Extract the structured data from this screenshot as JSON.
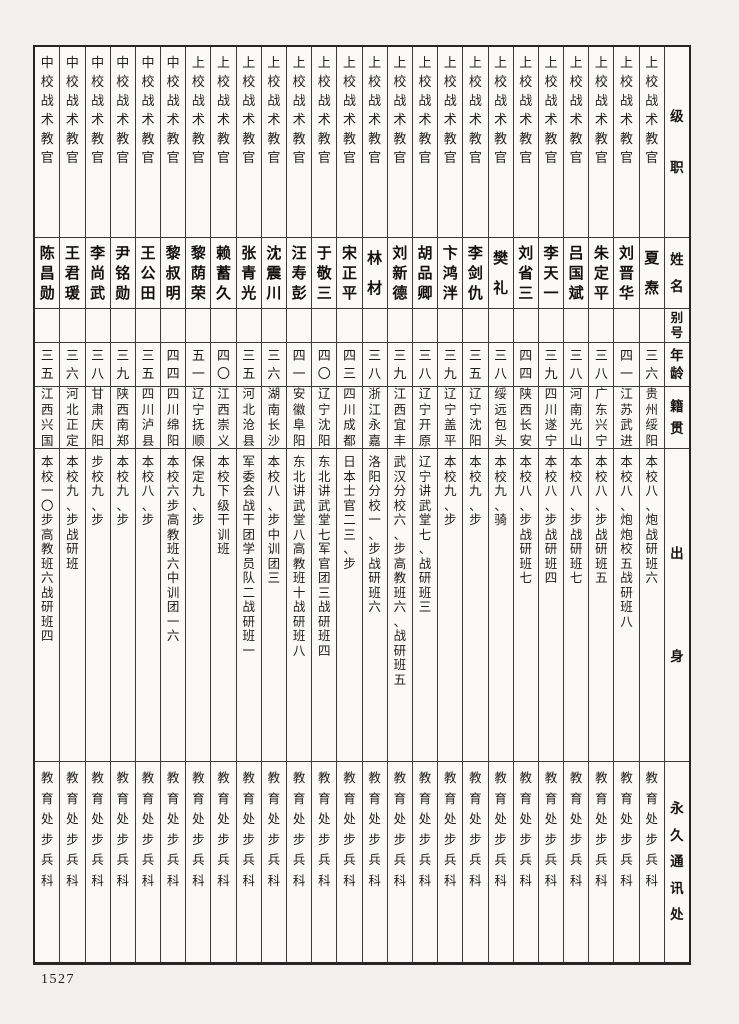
{
  "page": {
    "number": "1527"
  },
  "table": {
    "headers": {
      "rank": "级职",
      "name": "姓名",
      "alias": "别号",
      "age": "年龄",
      "native_place": "籍贯",
      "background": "出身",
      "address": "永久通讯处"
    },
    "reading_order": "right-to-left",
    "people": [
      {
        "rank": "上校战术教官",
        "name": "夏焘",
        "alias": "",
        "age": "三六",
        "native_place": "贵州绥阳",
        "background": "本校八、炮战研班六",
        "address": "教育处步兵科"
      },
      {
        "rank": "上校战术教官",
        "name": "刘晋华",
        "alias": "",
        "age": "四一",
        "native_place": "江苏武进",
        "background": "本校八、炮炮校五战研班八",
        "address": "教育处步兵科"
      },
      {
        "rank": "上校战术教官",
        "name": "朱定平",
        "alias": "",
        "age": "三八",
        "native_place": "广东兴宁",
        "background": "本校八、步战研班五",
        "address": "教育处步兵科"
      },
      {
        "rank": "上校战术教官",
        "name": "吕国斌",
        "alias": "",
        "age": "三八",
        "native_place": "河南光山",
        "background": "本校八、步战研班七",
        "address": "教育处步兵科"
      },
      {
        "rank": "上校战术教官",
        "name": "李天一",
        "alias": "",
        "age": "三九",
        "native_place": "四川遂宁",
        "background": "本校八、步战研班四",
        "address": "教育处步兵科"
      },
      {
        "rank": "上校战术教官",
        "name": "刘省三",
        "alias": "",
        "age": "四四",
        "native_place": "陕西长安",
        "background": "本校八、步战研班七",
        "address": "教育处步兵科"
      },
      {
        "rank": "上校战术教官",
        "name": "樊礼",
        "alias": "",
        "age": "三八",
        "native_place": "绥远包头",
        "background": "本校九、骑",
        "address": "教育处步兵科"
      },
      {
        "rank": "上校战术教官",
        "name": "李剑仇",
        "alias": "",
        "age": "三五",
        "native_place": "辽宁沈阳",
        "background": "本校九、步",
        "address": "教育处步兵科"
      },
      {
        "rank": "上校战术教官",
        "name": "卞鸿泮",
        "alias": "",
        "age": "三九",
        "native_place": "辽宁盖平",
        "background": "本校九、步",
        "address": "教育处步兵科"
      },
      {
        "rank": "上校战术教官",
        "name": "胡品卿",
        "alias": "",
        "age": "三八",
        "native_place": "辽宁开原",
        "background": "辽宁讲武堂七、战研班三",
        "address": "教育处步兵科"
      },
      {
        "rank": "上校战术教官",
        "name": "刘新德",
        "alias": "",
        "age": "三九",
        "native_place": "江西宜丰",
        "background": "武汉分校六、步高教班六、战研班五",
        "address": "教育处步兵科"
      },
      {
        "rank": "上校战术教官",
        "name": "林材",
        "alias": "",
        "age": "三八",
        "native_place": "浙江永嘉",
        "background": "洛阳分校一、步战研班六",
        "address": "教育处步兵科"
      },
      {
        "rank": "上校战术教官",
        "name": "宋正平",
        "alias": "",
        "age": "四三",
        "native_place": "四川成都",
        "background": "日本士官二三、步",
        "address": "教育处步兵科"
      },
      {
        "rank": "上校战术教官",
        "name": "于敬三",
        "alias": "",
        "age": "四〇",
        "native_place": "辽宁沈阳",
        "background": "东北讲武堂七军官团三战研班四",
        "address": "教育处步兵科"
      },
      {
        "rank": "上校战术教官",
        "name": "汪寿彭",
        "alias": "",
        "age": "四一",
        "native_place": "安徽阜阳",
        "background": "东北讲武堂八高教班十战研班八",
        "address": "教育处步兵科"
      },
      {
        "rank": "上校战术教官",
        "name": "沈震川",
        "alias": "",
        "age": "三六",
        "native_place": "湖南长沙",
        "background": "本校八、步中训团三",
        "address": "教育处步兵科"
      },
      {
        "rank": "上校战术教官",
        "name": "张青光",
        "alias": "",
        "age": "三五",
        "native_place": "河北沧县",
        "background": "军委会战干团学员队二战研班一",
        "address": "教育处步兵科"
      },
      {
        "rank": "上校战术教官",
        "name": "赖蓄久",
        "alias": "",
        "age": "四〇",
        "native_place": "江西崇义",
        "background": "本校下级干训班",
        "address": "教育处步兵科"
      },
      {
        "rank": "上校战术教官",
        "name": "黎荫荣",
        "alias": "",
        "age": "五一",
        "native_place": "辽宁抚顺",
        "background": "保定九、步",
        "address": "教育处步兵科"
      },
      {
        "rank": "中校战术教官",
        "name": "黎叔明",
        "alias": "",
        "age": "四四",
        "native_place": "四川绵阳",
        "background": "本校六步高教班六中训团一六",
        "address": "教育处步兵科"
      },
      {
        "rank": "中校战术教官",
        "name": "王公田",
        "alias": "",
        "age": "三五",
        "native_place": "四川泸县",
        "background": "本校八、步",
        "address": "教育处步兵科"
      },
      {
        "rank": "中校战术教官",
        "name": "尹铭勋",
        "alias": "",
        "age": "三九",
        "native_place": "陕西南郑",
        "background": "本校九、步",
        "address": "教育处步兵科"
      },
      {
        "rank": "中校战术教官",
        "name": "李尚武",
        "alias": "",
        "age": "三八",
        "native_place": "甘肃庆阳",
        "background": "步校九、步",
        "address": "教育处步兵科"
      },
      {
        "rank": "中校战术教官",
        "name": "王君瑗",
        "alias": "",
        "age": "三六",
        "native_place": "河北正定",
        "background": "本校九、步战研班",
        "address": "教育处步兵科"
      },
      {
        "rank": "中校战术教官",
        "name": "陈昌勋",
        "alias": "",
        "age": "三五",
        "native_place": "江西兴国",
        "background": "本校一〇步高教班六战研班四",
        "address": "教育处步兵科"
      }
    ]
  }
}
